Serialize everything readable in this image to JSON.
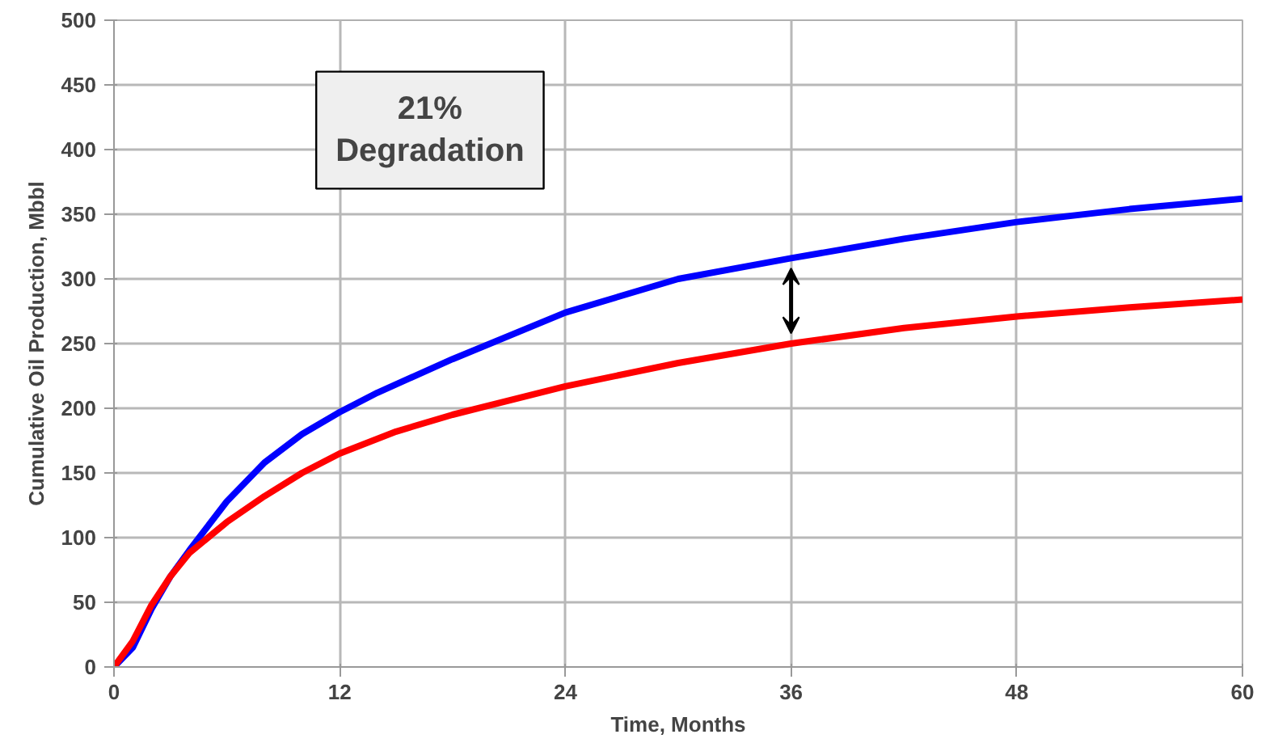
{
  "chart_data": {
    "type": "line",
    "xlabel": "Time, Months",
    "ylabel": "Cumulative Oil Production, Mbbl",
    "annotations": [
      "21%\nDegradation"
    ],
    "series": [
      {
        "color": "#0000ff",
        "x": [
          0,
          1,
          2,
          3,
          4,
          6,
          8,
          10,
          12,
          14,
          18,
          24,
          30,
          36,
          42,
          48,
          54,
          60
        ],
        "values": [
          0,
          15,
          45,
          70,
          90,
          128,
          158,
          180,
          197,
          212,
          238,
          274,
          300,
          316,
          331,
          344,
          354,
          362
        ]
      },
      {
        "color": "#ff0000",
        "x": [
          0,
          1,
          2,
          3,
          4,
          6,
          8,
          10,
          12,
          15,
          18,
          24,
          30,
          36,
          42,
          48,
          54,
          60
        ],
        "values": [
          0,
          20,
          48,
          70,
          88,
          112,
          132,
          150,
          165,
          182,
          195,
          217,
          235,
          250,
          262,
          271,
          278,
          284
        ]
      }
    ],
    "xlim": [
      0,
      60
    ],
    "xticks": [
      0,
      12,
      24,
      36,
      48,
      60
    ],
    "ylim": [
      0,
      500
    ],
    "yticks": [
      0,
      50,
      100,
      150,
      200,
      250,
      300,
      350,
      400,
      450,
      500
    ],
    "grid": true,
    "marker": "none",
    "line_style": "solid"
  }
}
